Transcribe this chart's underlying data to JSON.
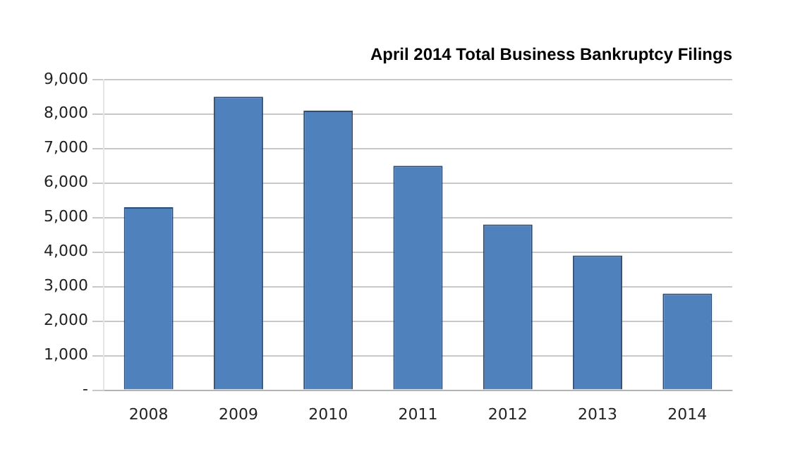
{
  "chart_data": {
    "type": "bar",
    "title": "April 2014 Total Business Bankruptcy Filings",
    "categories": [
      "2008",
      "2009",
      "2010",
      "2011",
      "2012",
      "2013",
      "2014"
    ],
    "values": [
      5300,
      8500,
      8100,
      6500,
      4800,
      3900,
      2800
    ],
    "color": "#4f81bd",
    "ylim": [
      0,
      9000
    ],
    "yticks": [
      {
        "value": 0,
        "label": "-"
      },
      {
        "value": 1000,
        "label": "1,000"
      },
      {
        "value": 2000,
        "label": "2,000"
      },
      {
        "value": 3000,
        "label": "3,000"
      },
      {
        "value": 4000,
        "label": "4,000"
      },
      {
        "value": 5000,
        "label": "5,000"
      },
      {
        "value": 6000,
        "label": "6,000"
      },
      {
        "value": 7000,
        "label": "7,000"
      },
      {
        "value": 8000,
        "label": "8,000"
      },
      {
        "value": 9000,
        "label": "9,000"
      }
    ],
    "grid": "y",
    "legend": false
  }
}
